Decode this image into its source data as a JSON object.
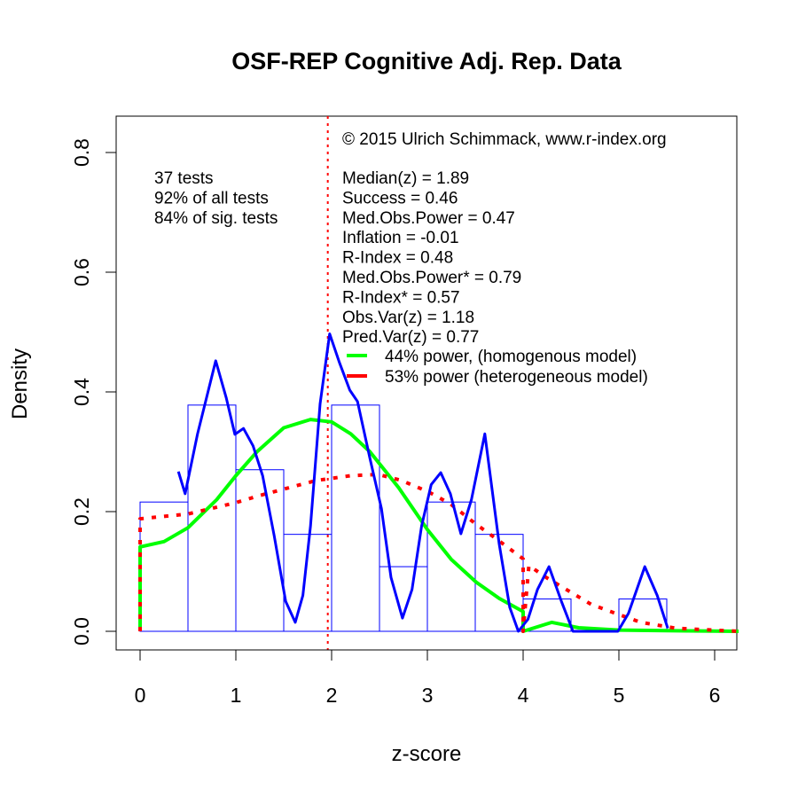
{
  "chart_data": {
    "type": "histogram",
    "title": "OSF-REP Cognitive Adj. Rep. Data",
    "xlabel": "z-score",
    "ylabel": "Density",
    "xlim": [
      -0.25,
      6.25
    ],
    "ylim": [
      -0.03,
      0.86
    ],
    "xticks": [
      0,
      1,
      2,
      3,
      4,
      5,
      6
    ],
    "xtick_labels": [
      "0",
      "1",
      "2",
      "3",
      "4",
      "5",
      "6"
    ],
    "yticks": [
      0.0,
      0.2,
      0.4,
      0.6,
      0.8
    ],
    "ytick_labels": [
      "0.0",
      "0.2",
      "0.4",
      "0.6",
      "0.8"
    ],
    "grid": false,
    "histogram": {
      "bin_edges": [
        0,
        0.5,
        1,
        1.5,
        2,
        2.5,
        3,
        3.5,
        4,
        4.5,
        5,
        5.5
      ],
      "density": [
        0.216,
        0.378,
        0.27,
        0.162,
        0.378,
        0.108,
        0.216,
        0.162,
        0.054,
        0,
        0.054
      ],
      "color": "#0000FF"
    },
    "series": [
      {
        "kind": "kernel-density",
        "color": "#0000FF",
        "style": "solid",
        "x": [
          0.4,
          0.47,
          0.6,
          0.79,
          0.9,
          0.99,
          1.08,
          1.18,
          1.28,
          1.4,
          1.52,
          1.62,
          1.7,
          1.78,
          1.88,
          1.98,
          2.08,
          2.19,
          2.27,
          2.4,
          2.52,
          2.62,
          2.74,
          2.84,
          2.94,
          3.04,
          3.14,
          3.24,
          3.35,
          3.46,
          3.6,
          3.75,
          3.86,
          3.95,
          4.05,
          4.15,
          4.27,
          4.4,
          4.52,
          4.7,
          4.99,
          5.1,
          5.27,
          5.4,
          5.51
        ],
        "y": [
          0.267,
          0.23,
          0.33,
          0.452,
          0.39,
          0.329,
          0.339,
          0.31,
          0.26,
          0.16,
          0.05,
          0.015,
          0.06,
          0.176,
          0.38,
          0.497,
          0.45,
          0.403,
          0.384,
          0.289,
          0.205,
          0.09,
          0.022,
          0.07,
          0.176,
          0.245,
          0.265,
          0.23,
          0.163,
          0.22,
          0.33,
          0.146,
          0.04,
          0.0,
          0.02,
          0.07,
          0.108,
          0.05,
          0.0,
          0.0,
          0.0,
          0.03,
          0.108,
          0.06,
          0.005
        ]
      },
      {
        "kind": "model",
        "name": "44% power, (homogenous model)",
        "color": "#00FF00",
        "style": "solid",
        "x": [
          0,
          0,
          0.25,
          0.5,
          0.8,
          1.0,
          1.22,
          1.5,
          1.78,
          2.0,
          2.2,
          2.4,
          2.7,
          3.0,
          3.25,
          3.51,
          3.75,
          4.0,
          4.0,
          4.3,
          4.58,
          5.0,
          5.5,
          6.25
        ],
        "y": [
          0,
          0.141,
          0.15,
          0.173,
          0.22,
          0.26,
          0.3,
          0.34,
          0.354,
          0.35,
          0.33,
          0.3,
          0.24,
          0.17,
          0.12,
          0.082,
          0.055,
          0.033,
          0.0,
          0.015,
          0.006,
          0.002,
          0.001,
          0.0
        ]
      },
      {
        "kind": "model",
        "name": "53% power (heterogeneous model)",
        "color": "#FF0000",
        "style": "dotted",
        "x": [
          0,
          0,
          0.5,
          1.0,
          1.25,
          1.84,
          2.2,
          2.49,
          2.73,
          3.01,
          3.24,
          3.5,
          3.75,
          4.0,
          4.0,
          4.06,
          4.25,
          4.71,
          5.0,
          5.23,
          5.6,
          6.25
        ],
        "y": [
          0,
          0.188,
          0.196,
          0.215,
          0.227,
          0.252,
          0.26,
          0.262,
          0.252,
          0.233,
          0.213,
          0.18,
          0.151,
          0.121,
          0.0,
          0.11,
          0.089,
          0.045,
          0.028,
          0.015,
          0.005,
          0.0
        ]
      }
    ],
    "reference_line": {
      "x": 1.96,
      "color": "#FF0000",
      "style": "dotted"
    },
    "annotations": {
      "copyright": "© 2015 Ulrich Schimmack, www.r-index.org",
      "left": [
        "37 tests",
        "92% of all tests",
        "84% of sig. tests"
      ],
      "stats": [
        "Median(z) = 1.89",
        "Success = 0.46",
        "Med.Obs.Power = 0.47",
        "Inflation = -0.01",
        "R-Index = 0.48",
        "Med.Obs.Power* = 0.79",
        "R-Index* = 0.57",
        "Obs.Var(z) = 1.18",
        "Pred.Var(z) = 0.77"
      ]
    },
    "legend": {
      "placement": "top-right",
      "entries": [
        {
          "label": "44% power, (homogenous model)",
          "color": "#00FF00"
        },
        {
          "label": "53% power (heterogeneous model)",
          "color": "#FF0000"
        }
      ]
    }
  }
}
